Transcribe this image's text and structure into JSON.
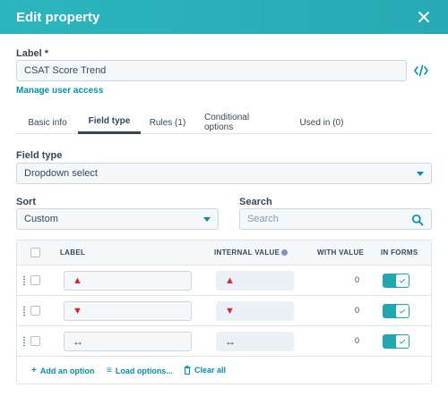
{
  "dialog": {
    "title": "Edit property"
  },
  "label_field": {
    "label": "Label *",
    "value": "CSAT Score Trend"
  },
  "manage_access_link": "Manage user access",
  "tabs": [
    {
      "label": "Basic info",
      "active": false
    },
    {
      "label": "Field type",
      "active": true
    },
    {
      "label": "Rules (1)",
      "active": false
    },
    {
      "label": "Conditional options",
      "active": false
    },
    {
      "label": "Used in (0)",
      "active": false
    }
  ],
  "field_type": {
    "label": "Field type",
    "value": "Dropdown select"
  },
  "sort": {
    "label": "Sort",
    "value": "Custom"
  },
  "search": {
    "label": "Search",
    "placeholder": "Search"
  },
  "table": {
    "headers": {
      "label": "LABEL",
      "internal_value": "INTERNAL VALUE",
      "with_value": "WITH VALUE",
      "in_forms": "IN FORMS"
    },
    "rows": [
      {
        "label": "▲",
        "internal_value": "▲",
        "with_value": "0",
        "in_forms": true,
        "glyph_color": "#e0232b"
      },
      {
        "label": "▼",
        "internal_value": "▼",
        "with_value": "0",
        "in_forms": true,
        "glyph_color": "#e0232b"
      },
      {
        "label": "↔",
        "internal_value": "↔",
        "with_value": "0",
        "in_forms": true,
        "glyph_color": "#33475b"
      }
    ]
  },
  "actions": {
    "add_option": "Add an option",
    "load_options": "Load options...",
    "clear_all": "Clear all"
  },
  "colors": {
    "header_bg": "#2bb5bd",
    "accent": "#0091ae",
    "toggle_on": "#1fa8b0",
    "text": "#33475b"
  }
}
